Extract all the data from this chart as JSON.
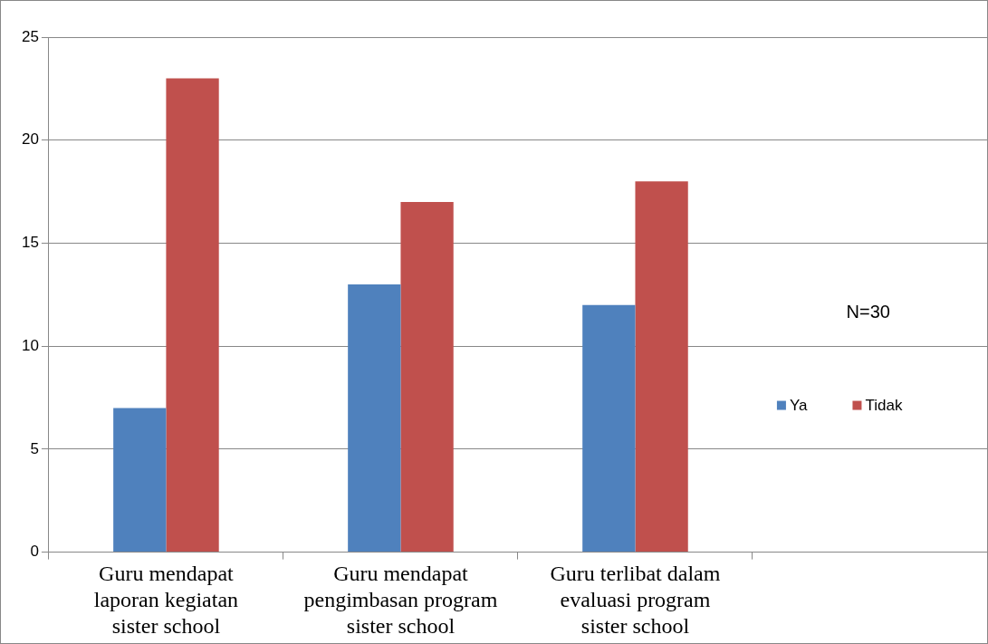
{
  "chart_data": {
    "type": "bar",
    "categories": [
      "Guru mendapat laporan kegiatan sister school",
      "Guru mendapat pengimbasan program sister school",
      "Guru terlibat dalam evaluasi program sister school",
      null
    ],
    "series": [
      {
        "name": "Ya",
        "color": "#4f81bd",
        "values": [
          7,
          13,
          12,
          null
        ]
      },
      {
        "name": "Tidak",
        "color": "#c0504d",
        "values": [
          23,
          17,
          18,
          null
        ]
      }
    ],
    "ylim": [
      0,
      25
    ],
    "yticks": [
      0,
      5,
      10,
      15,
      20,
      25
    ],
    "grid": "y",
    "legend": "right",
    "annotations": [
      "N=30"
    ]
  }
}
